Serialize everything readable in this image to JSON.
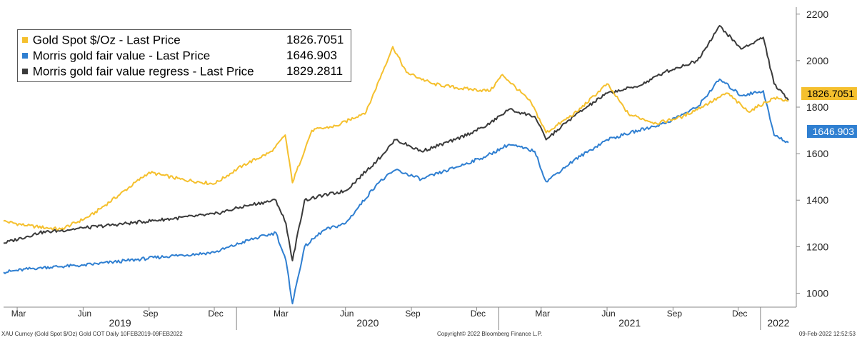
{
  "chart_data": {
    "type": "line",
    "y_ticks": [
      "1000",
      "1200",
      "1400",
      "1600",
      "1800",
      "2000",
      "2200"
    ],
    "ylim": [
      940,
      2230
    ],
    "x_months": [
      "Mar",
      "Jun",
      "Sep",
      "Dec",
      "Mar",
      "Jun",
      "Sep",
      "Dec",
      "Mar",
      "Jun",
      "Sep",
      "Dec"
    ],
    "x_years": [
      "2019",
      "2020",
      "2021",
      "2022"
    ],
    "grid": false,
    "legend_position": "top-left",
    "series": [
      {
        "name": "Gold Spot $/Oz - Last Price",
        "last_value": "1826.7051",
        "callout_value": "1826.7051",
        "color": "#f5c02e",
        "x": [
          "2019-02-10",
          "2019-03-15",
          "2019-05-01",
          "2019-06-10",
          "2019-07-20",
          "2019-09-01",
          "2019-10-15",
          "2019-12-01",
          "2020-01-10",
          "2020-02-20",
          "2020-03-09",
          "2020-03-19",
          "2020-04-15",
          "2020-05-20",
          "2020-06-30",
          "2020-08-06",
          "2020-08-25",
          "2020-10-01",
          "2020-11-10",
          "2020-12-20",
          "2021-01-06",
          "2021-02-15",
          "2021-03-08",
          "2021-04-20",
          "2021-06-01",
          "2021-07-01",
          "2021-08-09",
          "2021-09-15",
          "2021-11-16",
          "2021-12-15",
          "2022-01-20",
          "2022-02-09"
        ],
        "y": [
          1310,
          1290,
          1275,
          1330,
          1420,
          1520,
          1490,
          1470,
          1550,
          1610,
          1680,
          1475,
          1700,
          1720,
          1780,
          2060,
          1950,
          1900,
          1880,
          1870,
          1940,
          1820,
          1690,
          1780,
          1900,
          1770,
          1730,
          1760,
          1860,
          1780,
          1840,
          1826.7
        ]
      },
      {
        "name": "Morris gold fair value - Last Price",
        "last_value": "1646.903",
        "callout_value": "1646.903",
        "color": "#2f7fd1",
        "x": [
          "2019-02-10",
          "2019-04-01",
          "2019-06-01",
          "2019-08-01",
          "2019-10-01",
          "2019-12-01",
          "2020-01-20",
          "2020-02-25",
          "2020-03-10",
          "2020-03-19",
          "2020-04-05",
          "2020-05-01",
          "2020-06-01",
          "2020-07-15",
          "2020-08-10",
          "2020-09-15",
          "2020-11-01",
          "2020-12-15",
          "2021-01-15",
          "2021-02-20",
          "2021-03-08",
          "2021-04-15",
          "2021-06-01",
          "2021-07-15",
          "2021-08-20",
          "2021-10-05",
          "2021-11-05",
          "2021-12-05",
          "2022-01-05",
          "2022-01-20",
          "2022-02-09"
        ],
        "y": [
          1090,
          1110,
          1120,
          1140,
          1160,
          1175,
          1230,
          1260,
          1140,
          955,
          1200,
          1270,
          1300,
          1470,
          1530,
          1490,
          1540,
          1590,
          1640,
          1610,
          1480,
          1570,
          1660,
          1700,
          1730,
          1800,
          1920,
          1850,
          1870,
          1680,
          1646.9
        ]
      },
      {
        "name": "Morris gold fair value regress - Last Price",
        "last_value": "1829.2811",
        "color": "#3a3a3a",
        "x": [
          "2019-02-10",
          "2019-04-01",
          "2019-06-01",
          "2019-08-01",
          "2019-10-01",
          "2019-12-01",
          "2020-01-20",
          "2020-02-25",
          "2020-03-10",
          "2020-03-19",
          "2020-04-05",
          "2020-05-01",
          "2020-06-01",
          "2020-07-15",
          "2020-08-10",
          "2020-09-15",
          "2020-11-01",
          "2020-12-15",
          "2021-01-15",
          "2021-02-20",
          "2021-03-08",
          "2021-04-15",
          "2021-06-01",
          "2021-07-15",
          "2021-08-20",
          "2021-10-05",
          "2021-11-05",
          "2021-12-05",
          "2022-01-05",
          "2022-01-20",
          "2022-02-09"
        ],
        "y": [
          1215,
          1260,
          1280,
          1300,
          1320,
          1340,
          1380,
          1400,
          1300,
          1140,
          1400,
          1420,
          1440,
          1570,
          1660,
          1610,
          1660,
          1720,
          1790,
          1760,
          1660,
          1760,
          1860,
          1890,
          1950,
          2000,
          2150,
          2050,
          2100,
          1900,
          1829.3
        ]
      }
    ]
  },
  "footer": {
    "left": "XAU Curncy (Gold Spot  $/Oz) Gold COT  Daily 10FEB2019-09FEB2022",
    "center": "Copyright© 2022 Bloomberg Finance L.P.",
    "right": "09-Feb-2022 12:52:53"
  }
}
